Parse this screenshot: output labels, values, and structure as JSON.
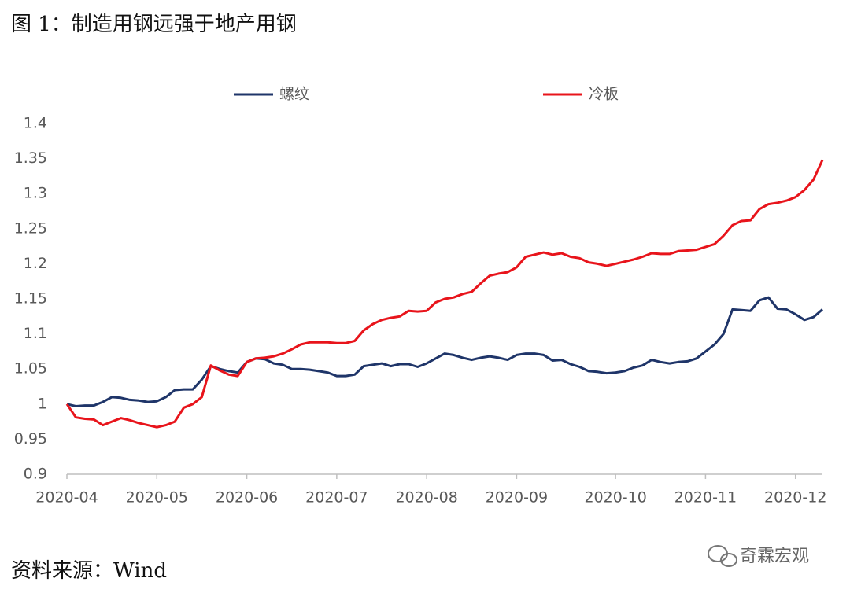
{
  "chart_data": {
    "type": "line",
    "title": "图 1：制造用钢远强于地产用钢",
    "source": "资料来源：Wind",
    "watermark": "奇霖宏观",
    "categories": [
      "2020-04",
      null,
      null,
      null,
      null,
      null,
      null,
      null,
      null,
      null,
      "2020-05",
      null,
      null,
      null,
      null,
      null,
      null,
      null,
      null,
      null,
      "2020-06",
      null,
      null,
      null,
      null,
      null,
      null,
      null,
      null,
      null,
      "2020-07",
      null,
      null,
      null,
      null,
      null,
      null,
      null,
      null,
      null,
      "2020-08",
      null,
      null,
      null,
      null,
      null,
      null,
      null,
      null,
      null,
      "2020-09",
      null,
      null,
      null,
      null,
      null,
      null,
      null,
      null,
      null,
      null,
      "2020-10",
      null,
      null,
      null,
      null,
      null,
      null,
      null,
      null,
      null,
      "2020-11",
      null,
      null,
      null,
      null,
      null,
      null,
      null,
      null,
      null,
      "2020-12",
      null,
      null,
      null
    ],
    "series": [
      {
        "name": "螺纹",
        "color": "#1f3569",
        "values": [
          1.0,
          0.997,
          0.998,
          0.998,
          1.003,
          1.01,
          1.009,
          1.006,
          1.005,
          1.003,
          1.004,
          1.01,
          1.02,
          1.021,
          1.021,
          1.035,
          1.054,
          1.05,
          1.047,
          1.045,
          1.06,
          1.065,
          1.064,
          1.058,
          1.056,
          1.05,
          1.05,
          1.049,
          1.047,
          1.045,
          1.04,
          1.04,
          1.042,
          1.054,
          1.056,
          1.058,
          1.054,
          1.057,
          1.057,
          1.053,
          1.058,
          1.065,
          1.072,
          1.07,
          1.066,
          1.063,
          1.066,
          1.068,
          1.066,
          1.063,
          1.07,
          1.072,
          1.072,
          1.07,
          1.062,
          1.063,
          1.057,
          1.053,
          1.047,
          1.046,
          1.044,
          1.045,
          1.047,
          1.052,
          1.055,
          1.063,
          1.06,
          1.058,
          1.06,
          1.061,
          1.065,
          1.075,
          1.085,
          1.1,
          1.135,
          1.134,
          1.133,
          1.148,
          1.152,
          1.136,
          1.135,
          1.128,
          1.12,
          1.124,
          1.135
        ]
      },
      {
        "name": "冷板",
        "color": "#e8141b",
        "values": [
          1.0,
          0.981,
          0.979,
          0.978,
          0.97,
          0.975,
          0.98,
          0.977,
          0.973,
          0.97,
          0.967,
          0.97,
          0.975,
          0.995,
          1.0,
          1.01,
          1.055,
          1.048,
          1.042,
          1.04,
          1.06,
          1.065,
          1.066,
          1.068,
          1.072,
          1.078,
          1.085,
          1.088,
          1.088,
          1.088,
          1.087,
          1.087,
          1.09,
          1.105,
          1.114,
          1.12,
          1.123,
          1.125,
          1.133,
          1.132,
          1.133,
          1.145,
          1.15,
          1.152,
          1.157,
          1.16,
          1.172,
          1.183,
          1.186,
          1.188,
          1.195,
          1.21,
          1.213,
          1.216,
          1.213,
          1.215,
          1.21,
          1.208,
          1.202,
          1.2,
          1.197,
          1.2,
          1.203,
          1.206,
          1.21,
          1.215,
          1.214,
          1.214,
          1.218,
          1.219,
          1.22,
          1.224,
          1.228,
          1.24,
          1.255,
          1.261,
          1.262,
          1.278,
          1.285,
          1.287,
          1.29,
          1.295,
          1.305,
          1.32,
          1.348
        ]
      }
    ],
    "ylim": [
      0.9,
      1.4
    ],
    "yticks": [
      0.9,
      0.95,
      1,
      1.05,
      1.1,
      1.15,
      1.2,
      1.25,
      1.3,
      1.35,
      1.4
    ],
    "grid": false
  }
}
